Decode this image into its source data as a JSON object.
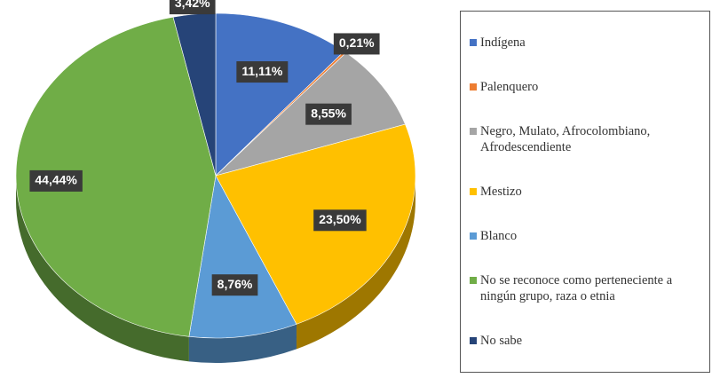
{
  "chart_data": {
    "type": "pie",
    "categories": [
      "Indígena",
      "Palenquero",
      "Negro, Mulato, Afrocolombiano, Afrodescendiente",
      "Mestizo",
      "Blanco",
      "No se reconoce como perteneciente a ningún grupo, raza o etnia",
      "No sabe"
    ],
    "values": [
      11.11,
      0.21,
      8.55,
      23.5,
      8.76,
      44.44,
      3.42
    ],
    "value_labels": [
      "11,11%",
      "0,21%",
      "8,55%",
      "23,50%",
      "8,76%",
      "44,44%",
      "3,42%"
    ],
    "colors": [
      "#4472c4",
      "#ed7d31",
      "#a5a5a5",
      "#ffc000",
      "#5b9bd5",
      "#70ad47",
      "#264478"
    ],
    "legend": "right"
  }
}
